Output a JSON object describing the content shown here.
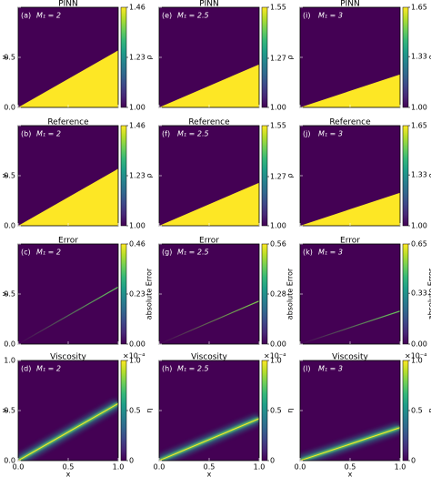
{
  "axes": {
    "xlabel": "x",
    "ylabel": "y",
    "xlim": [
      0,
      1
    ],
    "ylim": [
      0,
      1
    ],
    "xticks": [
      {
        "value": 0,
        "label": "0.0"
      },
      {
        "value": 0.5,
        "label": "0.5"
      },
      {
        "value": 1,
        "label": "1.0"
      }
    ],
    "yticks": [
      {
        "value": 0,
        "label": "0.0"
      },
      {
        "value": 0.5,
        "label": "0.5"
      },
      {
        "value": 1,
        "label": "1.0"
      }
    ]
  },
  "colormap": "viridis",
  "rows": [
    {
      "type": "fill",
      "title": "PINN",
      "colorbar_label": "ρ",
      "panels": [
        {
          "tag": "(a)",
          "case": "M₁ = 2",
          "clim": [
            1.0,
            1.46
          ],
          "cticks": [
            {
              "value": 1,
              "label": "1.00"
            },
            {
              "value": 1.23,
              "label": "1.23"
            },
            {
              "value": 1.46,
              "label": "1.46"
            }
          ],
          "shock_y": 0.57,
          "background": 1.0,
          "peak": 1.46
        },
        {
          "tag": "(e)",
          "case": "M₁ = 2.5",
          "clim": [
            1.0,
            1.55
          ],
          "cticks": [
            {
              "value": 1,
              "label": "1.00"
            },
            {
              "value": 1.27,
              "label": "1.27"
            },
            {
              "value": 1.55,
              "label": "1.55"
            }
          ],
          "shock_y": 0.43,
          "background": 1.0,
          "peak": 1.55
        },
        {
          "tag": "(i)",
          "case": "M₁ = 3",
          "clim": [
            1.0,
            1.65
          ],
          "cticks": [
            {
              "value": 1,
              "label": "1.00"
            },
            {
              "value": 1.33,
              "label": "1.33"
            },
            {
              "value": 1.65,
              "label": "1.65"
            }
          ],
          "shock_y": 0.33,
          "background": 1.0,
          "peak": 1.65
        }
      ]
    },
    {
      "type": "fill",
      "title": "Reference",
      "colorbar_label": "ρ",
      "panels": [
        {
          "tag": "(b)",
          "case": "M₁ = 2",
          "clim": [
            1.0,
            1.46
          ],
          "cticks": [
            {
              "value": 1,
              "label": "1.00"
            },
            {
              "value": 1.23,
              "label": "1.23"
            },
            {
              "value": 1.46,
              "label": "1.46"
            }
          ],
          "shock_y": 0.57,
          "background": 1.0,
          "peak": 1.46
        },
        {
          "tag": "(f)",
          "case": "M₁ = 2.5",
          "clim": [
            1.0,
            1.55
          ],
          "cticks": [
            {
              "value": 1,
              "label": "1.00"
            },
            {
              "value": 1.27,
              "label": "1.27"
            },
            {
              "value": 1.55,
              "label": "1.55"
            }
          ],
          "shock_y": 0.43,
          "background": 1.0,
          "peak": 1.55
        },
        {
          "tag": "(j)",
          "case": "M₁ = 3",
          "clim": [
            1.0,
            1.65
          ],
          "cticks": [
            {
              "value": 1,
              "label": "1.00"
            },
            {
              "value": 1.33,
              "label": "1.33"
            },
            {
              "value": 1.65,
              "label": "1.65"
            }
          ],
          "shock_y": 0.33,
          "background": 1.0,
          "peak": 1.65
        }
      ]
    },
    {
      "type": "line",
      "title": "Error",
      "colorbar_label": "absolute Error",
      "panels": [
        {
          "tag": "(c)",
          "case": "M₁ = 2",
          "clim": [
            0,
            0.46
          ],
          "cticks": [
            {
              "value": 0,
              "label": "0.00"
            },
            {
              "value": 0.23,
              "label": "0.23"
            },
            {
              "value": 0.46,
              "label": "0.46"
            }
          ],
          "shock_y": 0.57,
          "background": 0,
          "peak": 0.35
        },
        {
          "tag": "(g)",
          "case": "M₁ = 2.5",
          "clim": [
            0,
            0.56
          ],
          "cticks": [
            {
              "value": 0,
              "label": "0.00"
            },
            {
              "value": 0.28,
              "label": "0.28"
            },
            {
              "value": 0.56,
              "label": "0.56"
            }
          ],
          "shock_y": 0.43,
          "background": 0,
          "peak": 0.45
        },
        {
          "tag": "(k)",
          "case": "M₁ = 3",
          "clim": [
            0,
            0.65
          ],
          "cticks": [
            {
              "value": 0,
              "label": "0.00"
            },
            {
              "value": 0.33,
              "label": "0.33"
            },
            {
              "value": 0.65,
              "label": "0.65"
            }
          ],
          "shock_y": 0.33,
          "background": 0,
          "peak": 0.5
        }
      ]
    },
    {
      "type": "band",
      "title": "Viscosity",
      "colorbar_label": "η",
      "offset_text": "×10⁻⁴",
      "panels": [
        {
          "tag": "(d)",
          "case": "M₁ = 2",
          "clim": [
            0,
            1
          ],
          "cticks": [
            0,
            0.5,
            {
              "value": 1,
              "label": "1.0"
            }
          ],
          "shock_y": 0.57,
          "background": 0,
          "peak": 1
        },
        {
          "tag": "(h)",
          "case": "M₁ = 2.5",
          "clim": [
            0,
            1
          ],
          "cticks": [
            0,
            0.5,
            {
              "value": 1,
              "label": "1.0"
            }
          ],
          "shock_y": 0.42,
          "background": 0,
          "peak": 1
        },
        {
          "tag": "(l)",
          "case": "M₁ = 3",
          "clim": [
            0,
            1
          ],
          "cticks": [
            0,
            0.5,
            {
              "value": 1,
              "label": "1.0"
            }
          ],
          "shock_y": 0.33,
          "background": 0,
          "peak": 1
        }
      ]
    }
  ]
}
